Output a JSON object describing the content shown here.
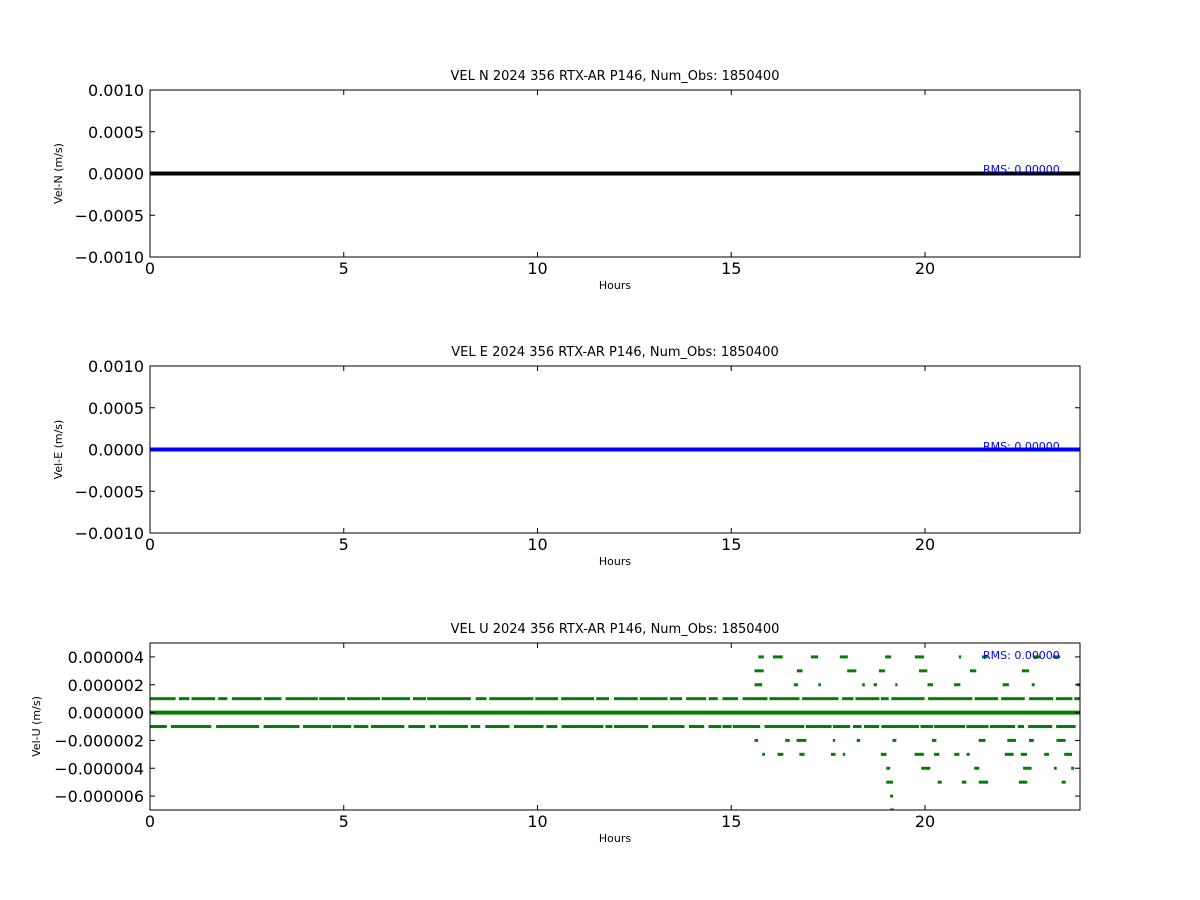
{
  "chart_data": [
    {
      "type": "line",
      "title": "VEL N 2024 356 RTX-AR  P146, Num_Obs: 1850400",
      "xlabel": "Hours",
      "ylabel": "Vel-N (m/s)",
      "xlim": [
        0,
        24
      ],
      "ylim": [
        -0.001,
        0.001
      ],
      "xticks": [
        0,
        5,
        10,
        15,
        20
      ],
      "xtick_labels": [
        "0",
        "5",
        "10",
        "15",
        "20"
      ],
      "yticks": [
        0.001,
        0.0005,
        0.0,
        -0.0005,
        -0.001
      ],
      "ytick_labels": [
        "0.0010",
        "0.0005",
        "0.0000",
        "−0.0005",
        "−0.0010"
      ],
      "grid": false,
      "annotation": "RMS:  0.00000",
      "color": "#000000",
      "series": [
        {
          "x": [
            0,
            24
          ],
          "y": [
            0,
            0
          ]
        }
      ]
    },
    {
      "type": "line",
      "title": "VEL E 2024 356 RTX-AR  P146, Num_Obs: 1850400",
      "xlabel": "Hours",
      "ylabel": "Vel-E (m/s)",
      "xlim": [
        0,
        24
      ],
      "ylim": [
        -0.001,
        0.001
      ],
      "xticks": [
        0,
        5,
        10,
        15,
        20
      ],
      "xtick_labels": [
        "0",
        "5",
        "10",
        "15",
        "20"
      ],
      "yticks": [
        0.001,
        0.0005,
        0.0,
        -0.0005,
        -0.001
      ],
      "ytick_labels": [
        "0.0010",
        "0.0005",
        "0.0000",
        "−0.0005",
        "−0.0010"
      ],
      "grid": false,
      "annotation": "RMS:  0.00000",
      "color": "#0000ff",
      "series": [
        {
          "x": [
            0,
            24
          ],
          "y": [
            0,
            0
          ]
        }
      ]
    },
    {
      "type": "scatter",
      "title": "VEL U 2024 356 RTX-AR  P146, Num_Obs: 1850400",
      "xlabel": "Hours",
      "ylabel": "Vel-U (m/s)",
      "xlim": [
        0,
        24
      ],
      "ylim": [
        -7e-06,
        5e-06
      ],
      "xticks": [
        0,
        5,
        10,
        15,
        20
      ],
      "xtick_labels": [
        "0",
        "5",
        "10",
        "15",
        "20"
      ],
      "yticks": [
        4e-06,
        2e-06,
        0.0,
        -2e-06,
        -4e-06,
        -6e-06
      ],
      "ytick_labels": [
        "0.000004",
        "0.000002",
        "0.000000",
        "−0.000002",
        "−0.000004",
        "−0.000006"
      ],
      "grid": false,
      "annotation": "RMS:  0.00000",
      "color": "#008000",
      "bands": [
        {
          "y": 0.0,
          "from": 0,
          "to": 24,
          "density": "solid"
        },
        {
          "y": 1e-06,
          "from": 0,
          "to": 24,
          "density": "dense"
        },
        {
          "y": -1e-06,
          "from": 0,
          "to": 24,
          "density": "dense"
        },
        {
          "y": 2e-06,
          "from": 15.6,
          "to": 24,
          "density": "sparse"
        },
        {
          "y": 3e-06,
          "from": 15.6,
          "to": 23.5,
          "density": "sparse"
        },
        {
          "y": 4e-06,
          "from": 15.7,
          "to": 23.5,
          "density": "sparse"
        },
        {
          "y": -2e-06,
          "from": 15.6,
          "to": 24,
          "density": "sparse"
        },
        {
          "y": -3e-06,
          "from": 15.8,
          "to": 24,
          "density": "sparse"
        },
        {
          "y": -4e-06,
          "from": 19.0,
          "to": 24,
          "density": "sparse"
        },
        {
          "y": -5e-06,
          "from": 19.0,
          "to": 24,
          "density": "sparse"
        },
        {
          "y": -6e-06,
          "from": 19.1,
          "to": 20.0,
          "density": "sparse"
        },
        {
          "y": -7e-06,
          "from": 19.1,
          "to": 19.2,
          "density": "sparse"
        }
      ]
    }
  ]
}
